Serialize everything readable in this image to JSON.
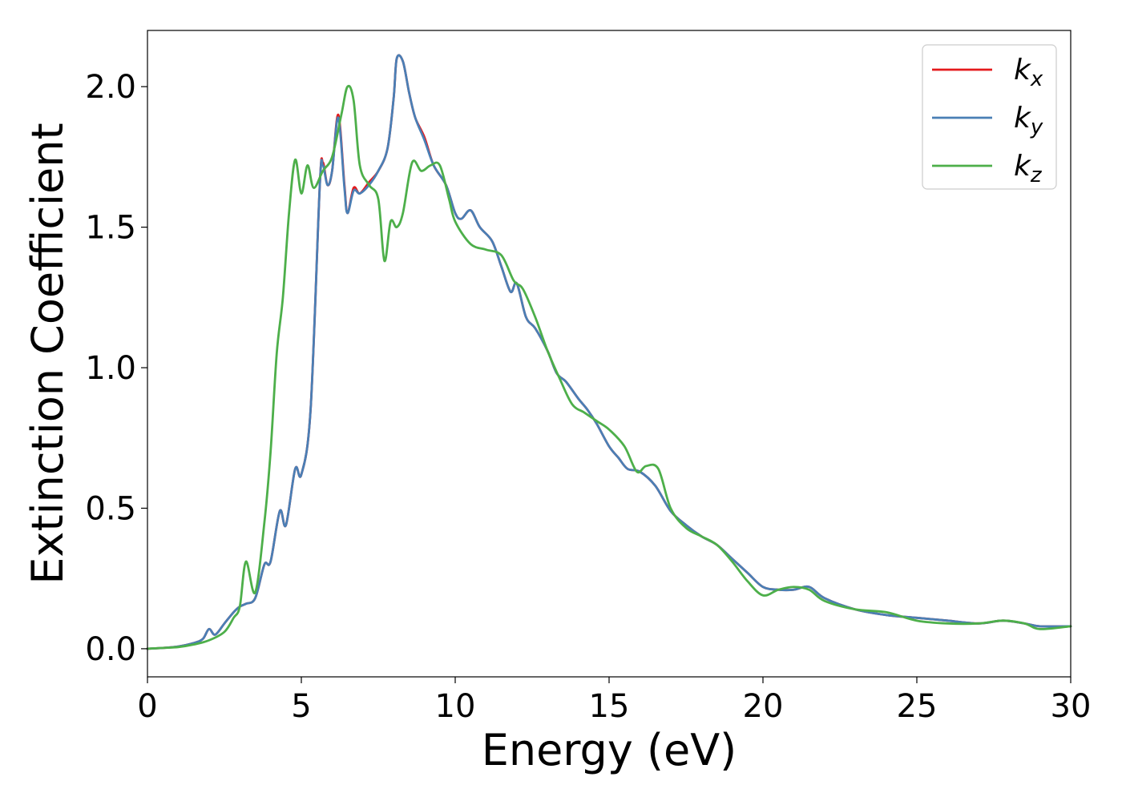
{
  "chart_data": {
    "type": "line",
    "xlabel": "Energy (eV)",
    "ylabel": "Extinction Coefficient",
    "xlim": [
      0,
      30
    ],
    "ylim": [
      -0.1,
      2.2
    ],
    "xticks": [
      0,
      5,
      10,
      15,
      20,
      25,
      30
    ],
    "xtick_labels": [
      "0",
      "5",
      "10",
      "15",
      "20",
      "25",
      "30"
    ],
    "yticks": [
      0.0,
      0.5,
      1.0,
      1.5,
      2.0
    ],
    "ytick_labels": [
      "0.0",
      "0.5",
      "1.0",
      "1.5",
      "2.0"
    ],
    "grid": false,
    "legend_position": "top-right",
    "series": [
      {
        "name": "k",
        "subscript": "x",
        "color": "#e41a1c",
        "x": [
          0,
          0.5,
          1,
          1.5,
          1.8,
          2.0,
          2.2,
          2.5,
          2.8,
          3.0,
          3.2,
          3.5,
          3.8,
          4.0,
          4.3,
          4.5,
          4.8,
          5.0,
          5.3,
          5.6,
          5.7,
          5.85,
          6.0,
          6.2,
          6.4,
          6.5,
          6.7,
          6.9,
          7.2,
          7.5,
          7.8,
          8.0,
          8.1,
          8.3,
          8.5,
          8.7,
          9.0,
          9.3,
          9.7,
          10.0,
          10.2,
          10.5,
          10.8,
          11.2,
          11.5,
          11.8,
          12.0,
          12.3,
          12.6,
          13.0,
          13.3,
          13.6,
          14.0,
          14.3,
          14.6,
          15.0,
          15.3,
          15.6,
          16.0,
          16.5,
          17.0,
          17.5,
          18.0,
          18.5,
          19.0,
          19.5,
          20.0,
          20.5,
          21.0,
          21.5,
          22.0,
          23.0,
          24.0,
          25.0,
          26.0,
          27.0,
          27.8,
          28.5,
          29.0,
          30.0
        ],
        "y": [
          0,
          0.003,
          0.008,
          0.02,
          0.035,
          0.07,
          0.05,
          0.09,
          0.13,
          0.15,
          0.16,
          0.18,
          0.3,
          0.31,
          0.49,
          0.44,
          0.64,
          0.62,
          0.85,
          1.65,
          1.73,
          1.65,
          1.7,
          1.9,
          1.65,
          1.55,
          1.64,
          1.62,
          1.66,
          1.7,
          1.78,
          1.96,
          2.1,
          2.09,
          1.98,
          1.89,
          1.82,
          1.72,
          1.65,
          1.55,
          1.53,
          1.56,
          1.5,
          1.45,
          1.36,
          1.27,
          1.3,
          1.18,
          1.14,
          1.06,
          0.98,
          0.95,
          0.89,
          0.85,
          0.8,
          0.72,
          0.68,
          0.64,
          0.63,
          0.58,
          0.49,
          0.44,
          0.4,
          0.37,
          0.32,
          0.27,
          0.22,
          0.21,
          0.21,
          0.22,
          0.18,
          0.14,
          0.12,
          0.11,
          0.1,
          0.09,
          0.1,
          0.09,
          0.08,
          0.08
        ]
      },
      {
        "name": "k",
        "subscript": "y",
        "color": "#4a7fb5",
        "x": [
          0,
          0.5,
          1,
          1.5,
          1.8,
          2.0,
          2.2,
          2.5,
          2.8,
          3.0,
          3.2,
          3.5,
          3.8,
          4.0,
          4.3,
          4.5,
          4.8,
          5.0,
          5.3,
          5.6,
          5.7,
          5.85,
          6.0,
          6.2,
          6.4,
          6.5,
          6.7,
          6.9,
          7.2,
          7.5,
          7.8,
          8.0,
          8.1,
          8.3,
          8.5,
          8.7,
          9.0,
          9.3,
          9.7,
          10.0,
          10.2,
          10.5,
          10.8,
          11.2,
          11.5,
          11.8,
          12.0,
          12.3,
          12.6,
          13.0,
          13.3,
          13.6,
          14.0,
          14.3,
          14.6,
          15.0,
          15.3,
          15.6,
          16.0,
          16.5,
          17.0,
          17.5,
          18.0,
          18.5,
          19.0,
          19.5,
          20.0,
          20.5,
          21.0,
          21.5,
          22.0,
          23.0,
          24.0,
          25.0,
          26.0,
          27.0,
          27.8,
          28.5,
          29.0,
          30.0
        ],
        "y": [
          0,
          0.003,
          0.008,
          0.02,
          0.035,
          0.07,
          0.05,
          0.09,
          0.13,
          0.15,
          0.16,
          0.18,
          0.3,
          0.31,
          0.49,
          0.44,
          0.64,
          0.62,
          0.85,
          1.65,
          1.72,
          1.65,
          1.7,
          1.89,
          1.64,
          1.55,
          1.63,
          1.62,
          1.65,
          1.7,
          1.78,
          1.96,
          2.1,
          2.09,
          1.98,
          1.89,
          1.81,
          1.72,
          1.65,
          1.55,
          1.53,
          1.56,
          1.5,
          1.45,
          1.36,
          1.27,
          1.3,
          1.18,
          1.14,
          1.06,
          0.98,
          0.95,
          0.89,
          0.85,
          0.8,
          0.72,
          0.68,
          0.64,
          0.63,
          0.58,
          0.49,
          0.44,
          0.4,
          0.37,
          0.32,
          0.27,
          0.22,
          0.21,
          0.21,
          0.22,
          0.18,
          0.14,
          0.12,
          0.11,
          0.1,
          0.09,
          0.1,
          0.09,
          0.08,
          0.08
        ]
      },
      {
        "name": "k",
        "subscript": "z",
        "color": "#4daf4a",
        "x": [
          0,
          0.5,
          1,
          1.5,
          2.0,
          2.5,
          2.8,
          3.0,
          3.2,
          3.5,
          3.8,
          4.0,
          4.2,
          4.4,
          4.6,
          4.8,
          5.0,
          5.2,
          5.4,
          5.7,
          6.0,
          6.3,
          6.5,
          6.7,
          6.9,
          7.2,
          7.5,
          7.7,
          7.9,
          8.1,
          8.3,
          8.6,
          8.9,
          9.2,
          9.5,
          9.8,
          10.0,
          10.5,
          11.0,
          11.5,
          11.9,
          12.2,
          12.6,
          13.0,
          13.4,
          13.8,
          14.2,
          14.6,
          15.0,
          15.5,
          15.9,
          16.2,
          16.6,
          17.0,
          17.5,
          18.0,
          18.5,
          19.0,
          19.5,
          20.0,
          20.5,
          21.0,
          21.5,
          22.0,
          23.0,
          24.0,
          25.0,
          26.0,
          27.0,
          27.8,
          28.5,
          29.0,
          30.0
        ],
        "y": [
          0,
          0.003,
          0.006,
          0.015,
          0.03,
          0.06,
          0.11,
          0.15,
          0.31,
          0.2,
          0.45,
          0.7,
          1.05,
          1.25,
          1.55,
          1.74,
          1.62,
          1.72,
          1.64,
          1.7,
          1.75,
          1.9,
          2.0,
          1.95,
          1.72,
          1.65,
          1.6,
          1.38,
          1.52,
          1.5,
          1.55,
          1.73,
          1.7,
          1.72,
          1.72,
          1.6,
          1.52,
          1.44,
          1.42,
          1.4,
          1.31,
          1.28,
          1.18,
          1.06,
          0.96,
          0.87,
          0.84,
          0.81,
          0.78,
          0.72,
          0.63,
          0.65,
          0.64,
          0.5,
          0.43,
          0.4,
          0.37,
          0.31,
          0.24,
          0.19,
          0.21,
          0.22,
          0.21,
          0.17,
          0.14,
          0.13,
          0.1,
          0.09,
          0.09,
          0.1,
          0.09,
          0.07,
          0.08
        ]
      }
    ]
  }
}
